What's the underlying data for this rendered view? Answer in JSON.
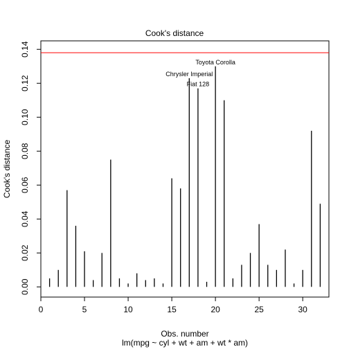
{
  "chart_data": {
    "type": "bar",
    "title": "Cook's distance",
    "xlabel": "Obs. number",
    "subtitle": "lm(mpg ~ cyl + wt + am + wt * am)",
    "ylabel": "Cook's distance",
    "xlim": [
      0,
      33
    ],
    "ylim": [
      -0.006,
      0.145
    ],
    "x_ticks": [
      0,
      5,
      10,
      15,
      20,
      25,
      30
    ],
    "y_ticks": [
      0.0,
      0.02,
      0.04,
      0.06,
      0.08,
      0.1,
      0.12,
      0.14
    ],
    "x_tick_labels": [
      "0",
      "5",
      "10",
      "15",
      "20",
      "25",
      "30"
    ],
    "y_tick_labels": [
      "0.00",
      "0.02",
      "0.04",
      "0.06",
      "0.08",
      "0.10",
      "0.12",
      "0.14"
    ],
    "x": [
      1,
      2,
      3,
      4,
      5,
      6,
      7,
      8,
      9,
      10,
      11,
      12,
      13,
      14,
      15,
      16,
      17,
      18,
      19,
      20,
      21,
      22,
      23,
      24,
      25,
      26,
      27,
      28,
      29,
      30,
      31,
      32
    ],
    "values": [
      0.005,
      0.01,
      0.057,
      0.036,
      0.021,
      0.004,
      0.02,
      0.075,
      0.005,
      0.002,
      0.008,
      0.004,
      0.005,
      0.002,
      0.064,
      0.058,
      0.123,
      0.117,
      0.003,
      0.13,
      0.11,
      0.005,
      0.013,
      0.02,
      0.037,
      0.013,
      0.01,
      0.022,
      0.002,
      0.01,
      0.092,
      0.049
    ],
    "reference_line": {
      "y": 0.138,
      "color": "#ff0000"
    },
    "annotations": [
      {
        "label": "Toyota Corolla",
        "x": 20,
        "y": 0.13
      },
      {
        "label": "Chrysler Imperial",
        "x": 17,
        "y": 0.123
      },
      {
        "label": "Fiat 128",
        "x": 18,
        "y": 0.117
      }
    ],
    "grid": false,
    "bar_color": "#000000"
  }
}
